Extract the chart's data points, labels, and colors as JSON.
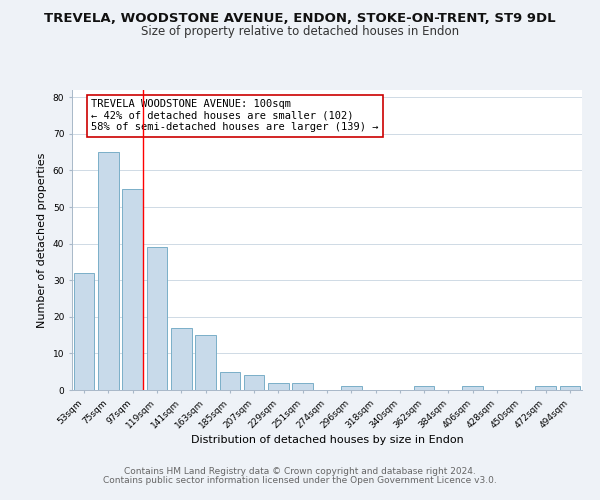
{
  "title": "TREVELA, WOODSTONE AVENUE, ENDON, STOKE-ON-TRENT, ST9 9DL",
  "subtitle": "Size of property relative to detached houses in Endon",
  "xlabel": "Distribution of detached houses by size in Endon",
  "ylabel": "Number of detached properties",
  "bar_labels": [
    "53sqm",
    "75sqm",
    "97sqm",
    "119sqm",
    "141sqm",
    "163sqm",
    "185sqm",
    "207sqm",
    "229sqm",
    "251sqm",
    "274sqm",
    "296sqm",
    "318sqm",
    "340sqm",
    "362sqm",
    "384sqm",
    "406sqm",
    "428sqm",
    "450sqm",
    "472sqm",
    "494sqm"
  ],
  "bar_values": [
    32,
    65,
    55,
    39,
    17,
    15,
    5,
    4,
    2,
    2,
    0,
    1,
    0,
    0,
    1,
    0,
    1,
    0,
    0,
    1,
    1
  ],
  "bar_color": "#c8daea",
  "bar_edge_color": "#7aafc8",
  "redline_color": "red",
  "redline_after_index": 2,
  "annotation_text_line1": "TREVELA WOODSTONE AVENUE: 100sqm",
  "annotation_text_line2": "← 42% of detached houses are smaller (102)",
  "annotation_text_line3": "58% of semi-detached houses are larger (139) →",
  "annotation_box_facecolor": "white",
  "annotation_box_edgecolor": "#cc0000",
  "ylim": [
    0,
    82
  ],
  "yticks": [
    0,
    10,
    20,
    30,
    40,
    50,
    60,
    70,
    80
  ],
  "footer_line1": "Contains HM Land Registry data © Crown copyright and database right 2024.",
  "footer_line2": "Contains public sector information licensed under the Open Government Licence v3.0.",
  "background_color": "#eef2f7",
  "plot_background_color": "#ffffff",
  "grid_color": "#c8d4e0",
  "title_fontsize": 9.5,
  "subtitle_fontsize": 8.5,
  "axis_label_fontsize": 8,
  "tick_fontsize": 6.5,
  "annotation_fontsize": 7.5,
  "footer_fontsize": 6.5
}
